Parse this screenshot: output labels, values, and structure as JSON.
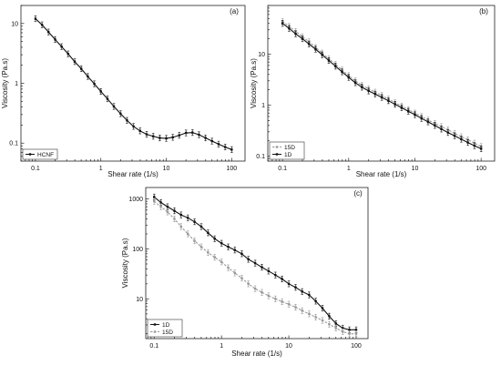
{
  "chart_data": [
    {
      "type": "line",
      "panel_label": "(a)",
      "xlabel": "Shear rate (1/s)",
      "ylabel": "Viscosity (Pa.s)",
      "xscale": "log",
      "yscale": "log",
      "xlim": [
        0.06,
        160
      ],
      "ylim": [
        0.05,
        20
      ],
      "xticks": [
        "0.1",
        "1",
        "10",
        "100"
      ],
      "yticks": [
        "0.1",
        "1",
        "10"
      ],
      "legend_position": "bottom-left",
      "series": [
        {
          "name": "HCNF",
          "color": "#111111",
          "style": "solid",
          "marker": "square",
          "x": [
            0.1,
            0.126,
            0.158,
            0.2,
            0.251,
            0.316,
            0.398,
            0.501,
            0.631,
            0.794,
            1.0,
            1.26,
            1.58,
            2.0,
            2.51,
            3.16,
            3.98,
            5.01,
            6.31,
            7.94,
            10.0,
            12.6,
            15.8,
            20.0,
            25.1,
            31.6,
            39.8,
            50.1,
            63.1,
            79.4,
            100
          ],
          "y": [
            12,
            9.5,
            7.2,
            5.4,
            4.1,
            3.1,
            2.3,
            1.75,
            1.3,
            0.98,
            0.73,
            0.55,
            0.41,
            0.31,
            0.24,
            0.19,
            0.16,
            0.14,
            0.13,
            0.122,
            0.12,
            0.125,
            0.135,
            0.148,
            0.15,
            0.138,
            0.122,
            0.108,
            0.096,
            0.086,
            0.078
          ]
        }
      ]
    },
    {
      "type": "line",
      "panel_label": "(b)",
      "xlabel": "Shear rate (1/s)",
      "ylabel": "Viscosity (Pa.s)",
      "xscale": "log",
      "yscale": "log",
      "xlim": [
        0.06,
        160
      ],
      "ylim": [
        0.08,
        90
      ],
      "xticks": [
        "0.1",
        "1",
        "10",
        "100"
      ],
      "yticks": [
        "0.1",
        "1",
        "10"
      ],
      "legend_position": "bottom-left",
      "series": [
        {
          "name": "15D",
          "color": "#999999",
          "style": "dashed",
          "marker": "square",
          "x": [
            0.1,
            0.126,
            0.158,
            0.2,
            0.251,
            0.316,
            0.398,
            0.501,
            0.631,
            0.794,
            1.0,
            1.26,
            1.58,
            2.0,
            2.51,
            3.16,
            3.98,
            5.01,
            6.31,
            7.94,
            10.0,
            12.6,
            15.8,
            20.0,
            25.1,
            31.6,
            39.8,
            50.1,
            63.1,
            79.4,
            100
          ],
          "y": [
            44,
            35,
            28,
            22,
            17.5,
            13.5,
            10.5,
            8.1,
            6.3,
            4.9,
            3.8,
            3.0,
            2.45,
            2.1,
            1.8,
            1.55,
            1.32,
            1.12,
            0.96,
            0.82,
            0.7,
            0.6,
            0.51,
            0.44,
            0.38,
            0.33,
            0.28,
            0.24,
            0.21,
            0.18,
            0.155
          ]
        },
        {
          "name": "1D",
          "color": "#111111",
          "style": "solid",
          "marker": "square",
          "x": [
            0.1,
            0.126,
            0.158,
            0.2,
            0.251,
            0.316,
            0.398,
            0.501,
            0.631,
            0.794,
            1.0,
            1.26,
            1.58,
            2.0,
            2.51,
            3.16,
            3.98,
            5.01,
            6.31,
            7.94,
            10.0,
            12.6,
            15.8,
            20.0,
            25.1,
            31.6,
            39.8,
            50.1,
            63.1,
            79.4,
            100
          ],
          "y": [
            40,
            32,
            25,
            20,
            15.8,
            12.5,
            9.7,
            7.5,
            5.8,
            4.5,
            3.5,
            2.75,
            2.25,
            1.9,
            1.65,
            1.42,
            1.22,
            1.04,
            0.89,
            0.76,
            0.65,
            0.55,
            0.47,
            0.4,
            0.34,
            0.29,
            0.25,
            0.215,
            0.185,
            0.16,
            0.14
          ]
        }
      ]
    },
    {
      "type": "line",
      "panel_label": "(c)",
      "xlabel": "Shear rate (1/s)",
      "ylabel": "Viscosity (Pa.s)",
      "xscale": "log",
      "yscale": "log",
      "xlim": [
        0.075,
        150
      ],
      "ylim": [
        1.6,
        1700
      ],
      "xticks": [
        "0.1",
        "1",
        "10",
        "100"
      ],
      "yticks": [
        "10",
        "100",
        "1000"
      ],
      "legend_position": "bottom-left",
      "series": [
        {
          "name": "1D",
          "color": "#111111",
          "style": "solid",
          "marker": "square",
          "x": [
            0.1,
            0.126,
            0.158,
            0.2,
            0.251,
            0.316,
            0.398,
            0.501,
            0.631,
            0.794,
            1.0,
            1.26,
            1.58,
            2.0,
            2.51,
            3.16,
            3.98,
            5.01,
            6.31,
            7.94,
            10.0,
            12.6,
            15.8,
            20.0,
            25.1,
            31.6,
            39.8,
            50.1,
            63.1,
            79.4,
            100
          ],
          "y": [
            1100,
            850,
            700,
            580,
            480,
            420,
            350,
            280,
            210,
            160,
            130,
            110,
            95,
            80,
            62,
            52,
            43,
            36,
            30,
            25,
            20,
            17,
            14,
            12,
            9,
            6.5,
            4.5,
            3.2,
            2.6,
            2.4,
            2.4
          ]
        },
        {
          "name": "15D",
          "color": "#999999",
          "style": "dashed",
          "marker": "square",
          "x": [
            0.1,
            0.126,
            0.158,
            0.2,
            0.251,
            0.316,
            0.398,
            0.501,
            0.631,
            0.794,
            1.0,
            1.26,
            1.58,
            2.0,
            2.51,
            3.16,
            3.98,
            5.01,
            6.31,
            7.94,
            10.0,
            12.6,
            15.8,
            20.0,
            25.1,
            31.6,
            39.8,
            50.1,
            63.1,
            79.4,
            100
          ],
          "y": [
            900,
            700,
            550,
            400,
            280,
            200,
            145,
            110,
            85,
            68,
            55,
            42,
            33,
            26,
            20,
            16,
            13.5,
            11.5,
            10,
            8.8,
            7.8,
            6.8,
            5.8,
            5.0,
            4.3,
            3.7,
            3.1,
            2.6,
            2.2,
            2.0,
            2.0
          ]
        }
      ]
    }
  ]
}
